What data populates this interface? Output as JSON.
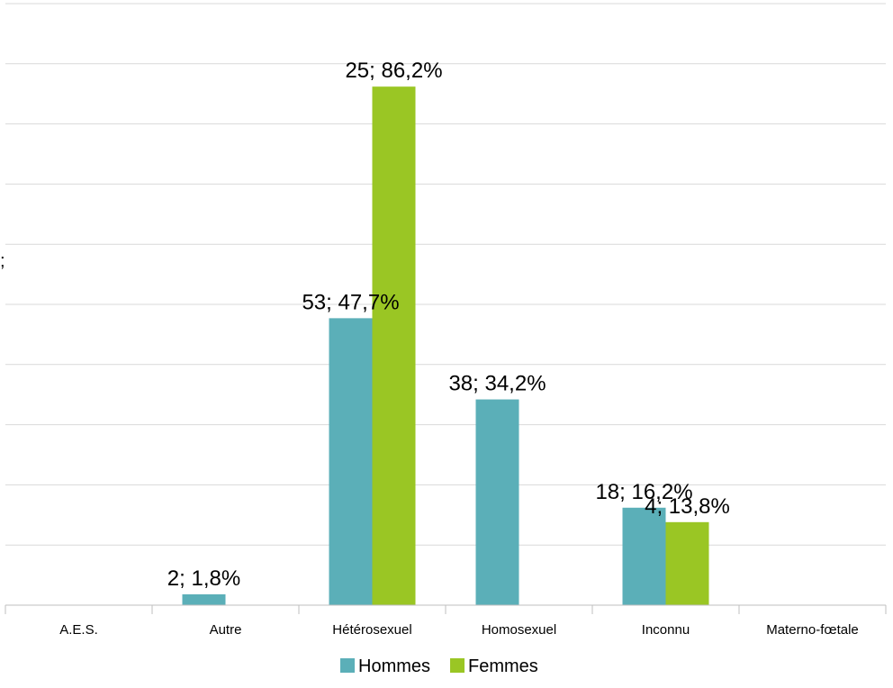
{
  "chart_data": {
    "type": "bar",
    "categories": [
      "A.E.S.",
      "Autre",
      "Hétérosexuel",
      "Homosexuel",
      "Inconnu",
      "Materno-fœtale"
    ],
    "series": [
      {
        "name": "Hommes",
        "color": "#5BAFB8",
        "values": [
          0,
          2,
          53,
          38,
          18,
          0
        ],
        "percent": [
          0,
          1.8,
          47.7,
          34.2,
          16.2,
          0
        ],
        "labels": [
          "",
          "2; 1,8%",
          "53; 47,7%",
          "38; 34,2%",
          "18; 16,2%",
          ""
        ]
      },
      {
        "name": "Femmes",
        "color": "#9AC624",
        "values": [
          0,
          0,
          25,
          0,
          4,
          0
        ],
        "percent": [
          0,
          0,
          86.2,
          0,
          13.8,
          0
        ],
        "labels": [
          "",
          "",
          "25; 86,2%",
          "",
          "4; 13,8%",
          ""
        ]
      }
    ],
    "ylim": [
      0,
      100
    ],
    "grid": true,
    "legend": "bottom-center",
    "stray_text": ";"
  }
}
